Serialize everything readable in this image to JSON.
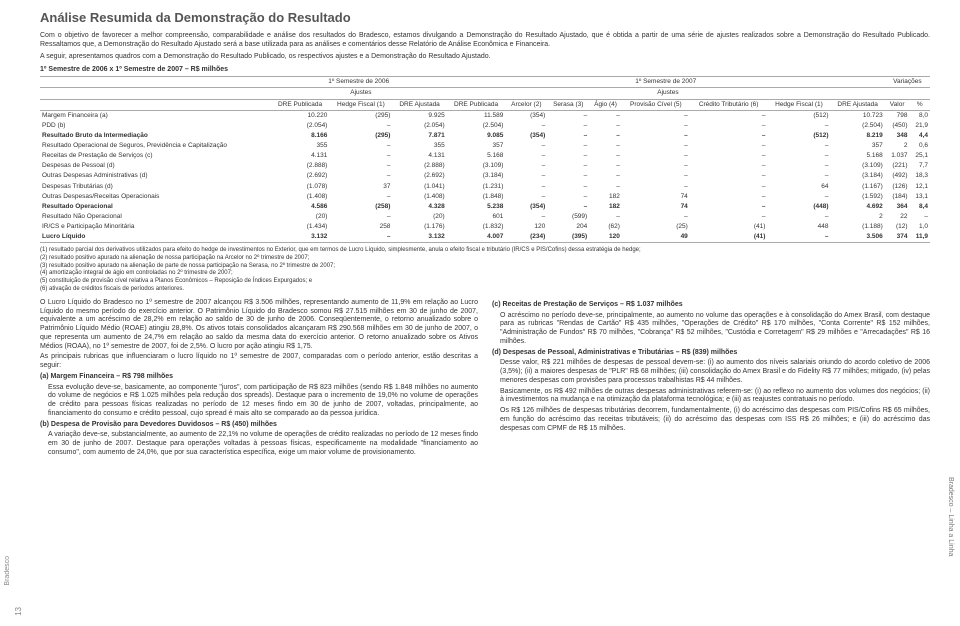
{
  "title": "Análise Resumida da Demonstração do Resultado",
  "intro": [
    "Com o objetivo de favorecer a melhor compreensão, comparabilidade e análise dos resultados do Bradesco, estamos divulgando a Demonstração do Resultado Ajustado, que é obtida a partir de uma série de ajustes realizados sobre a Demonstração do Resultado Publicado. Ressaltamos que, a Demonstração do Resultado Ajustado será a base utilizada para as análises e comentários desse Relatório de Análise Econômica e Financeira.",
    "A seguir, apresentamos quadros com a Demonstração do Resultado Publicado, os respectivos ajustes e a Demonstração do Resultado Ajustado."
  ],
  "subtitle": "1º Semestre de 2006 x 1º Semestre de 2007 – R$ milhões",
  "table": {
    "period1": "1º Semestre de 2006",
    "period2": "1º Semestre de 2007",
    "var": "Variações",
    "adjustLabel": "Ajustes",
    "cols": [
      "DRE Publicada",
      "Hedge Fiscal (1)",
      "DRE Ajustada",
      "DRE Publicada",
      "Arcelor (2)",
      "Serasa (3)",
      "Ágio (4)",
      "Provisão Cível (5)",
      "Crédito Tributário (6)",
      "Hedge Fiscal (1)",
      "DRE Ajustada",
      "Valor",
      "%"
    ],
    "rows": [
      {
        "label": "Margem Financeira (a)",
        "v": [
          "10.220",
          "(295)",
          "9.925",
          "11.589",
          "(354)",
          "–",
          "–",
          "–",
          "–",
          "(512)",
          "10.723",
          "798",
          "8,0"
        ],
        "bold": false
      },
      {
        "label": "PDD (b)",
        "v": [
          "(2.054)",
          "–",
          "(2.054)",
          "(2.504)",
          "–",
          "–",
          "–",
          "–",
          "–",
          "–",
          "(2.504)",
          "(450)",
          "21,9"
        ],
        "bold": false
      },
      {
        "label": "Resultado Bruto da Intermediação",
        "v": [
          "8.166",
          "(295)",
          "7.871",
          "9.085",
          "(354)",
          "–",
          "–",
          "–",
          "–",
          "(512)",
          "8.219",
          "348",
          "4,4"
        ],
        "bold": true
      },
      {
        "label": "Resultado Operacional de Seguros, Previdência e Capitalização",
        "v": [
          "355",
          "–",
          "355",
          "357",
          "–",
          "–",
          "–",
          "–",
          "–",
          "–",
          "357",
          "2",
          "0,6"
        ],
        "bold": false
      },
      {
        "label": "Receitas de Prestação de Serviços (c)",
        "v": [
          "4.131",
          "–",
          "4.131",
          "5.168",
          "–",
          "–",
          "–",
          "–",
          "–",
          "–",
          "5.168",
          "1.037",
          "25,1"
        ],
        "bold": false
      },
      {
        "label": "Despesas de Pessoal (d)",
        "v": [
          "(2.888)",
          "–",
          "(2.888)",
          "(3.109)",
          "–",
          "–",
          "–",
          "–",
          "–",
          "–",
          "(3.109)",
          "(221)",
          "7,7"
        ],
        "bold": false
      },
      {
        "label": "Outras Despesas Administrativas (d)",
        "v": [
          "(2.692)",
          "–",
          "(2.692)",
          "(3.184)",
          "–",
          "–",
          "–",
          "–",
          "–",
          "–",
          "(3.184)",
          "(492)",
          "18,3"
        ],
        "bold": false
      },
      {
        "label": "Despesas Tributárias (d)",
        "v": [
          "(1.078)",
          "37",
          "(1.041)",
          "(1.231)",
          "–",
          "–",
          "–",
          "–",
          "–",
          "64",
          "(1.167)",
          "(126)",
          "12,1"
        ],
        "bold": false
      },
      {
        "label": "Outras Despesas/Receitas Operacionais",
        "v": [
          "(1.408)",
          "–",
          "(1.408)",
          "(1.848)",
          "–",
          "–",
          "182",
          "74",
          "–",
          "–",
          "(1.592)",
          "(184)",
          "13,1"
        ],
        "bold": false
      },
      {
        "label": "Resultado Operacional",
        "v": [
          "4.586",
          "(258)",
          "4.328",
          "5.238",
          "(354)",
          "–",
          "182",
          "74",
          "–",
          "(448)",
          "4.692",
          "364",
          "8,4"
        ],
        "bold": true
      },
      {
        "label": "Resultado Não Operacional",
        "v": [
          "(20)",
          "–",
          "(20)",
          "601",
          "–",
          "(599)",
          "–",
          "–",
          "–",
          "–",
          "2",
          "22",
          "–"
        ],
        "bold": false
      },
      {
        "label": "IR/CS e Participação Minoritária",
        "v": [
          "(1.434)",
          "258",
          "(1.176)",
          "(1.832)",
          "120",
          "204",
          "(62)",
          "(25)",
          "(41)",
          "448",
          "(1.188)",
          "(12)",
          "1,0"
        ],
        "bold": false
      },
      {
        "label": "Lucro Líquido",
        "v": [
          "3.132",
          "–",
          "3.132",
          "4.007",
          "(234)",
          "(395)",
          "120",
          "49",
          "(41)",
          "–",
          "3.506",
          "374",
          "11,9"
        ],
        "bold": true
      }
    ]
  },
  "notes": [
    "(1) resultado parcial dos derivativos utilizados para efeito do hedge de investimentos no Exterior, que em termos de Lucro Líquido, simplesmente, anula o efeito fiscal e tributário (IR/CS e PIS/Cofins) dessa estratégia de hedge;",
    "(2) resultado positivo apurado na alienação de nossa participação na Arcelor no 2º trimestre de 2007;",
    "(3) resultado positivo apurado na alienação de parte de nossa participação na Serasa, no 2º trimestre de 2007;",
    "(4) amortização integral de ágio em controladas no 2º trimestre de 2007;",
    "(5) constituição de provisão cível relativa a Planos Econômicos – Reposição de Índices Expurgados; e",
    "(6) ativação de créditos fiscais de períodos anteriores."
  ],
  "left": [
    {
      "t": "p",
      "c": "O Lucro Líquido do Bradesco no 1º semestre de 2007 alcançou R$ 3.506 milhões, representando aumento de 11,9% em relação ao Lucro Líquido do mesmo período do exercício anterior. O Patrimônio Líquido do Bradesco somou R$ 27.515 milhões em 30 de junho de 2007, equivalente a um acréscimo de 28,2% em relação ao saldo de 30 de junho de 2006. Conseqüentemente, o retorno anualizado sobre o Patrimônio Líquido Médio (ROAE) atingiu 28,8%. Os ativos totais consolidados alcançaram R$ 290.568 milhões em 30 de junho de 2007, o que representa um aumento de 24,7% em relação ao saldo da mesma data do exercício anterior. O retorno anualizado sobre os Ativos Médios (ROAA), no 1º semestre de 2007, foi de 2,5%. O lucro por ação atingiu R$ 1,75."
    },
    {
      "t": "p",
      "c": "As principais rubricas que influenciaram o lucro líquido no 1º semestre de 2007, comparadas com o período anterior, estão descritas a seguir:"
    },
    {
      "t": "h",
      "c": "(a) Margem Financeira – R$ 798 milhões"
    },
    {
      "t": "pi",
      "c": "Essa evolução deve-se, basicamente, ao componente \"juros\", com participação de R$ 823 milhões (sendo R$ 1.848 milhões no aumento do volume de negócios e R$ 1.025 milhões pela redução dos spreads). Destaque para o incremento de 19,0% no volume de operações de crédito para pessoas físicas realizadas no período de 12 meses findo em 30 de junho de 2007, voltadas, principalmente, ao financiamento do consumo e crédito pessoal, cujo spread é mais alto se comparado ao da pessoa jurídica."
    },
    {
      "t": "h",
      "c": "(b) Despesa de Provisão para Devedores Duvidosos – R$ (450) milhões"
    },
    {
      "t": "pi",
      "c": "A variação deve-se, substancialmente, ao aumento de 22,1% no volume de operações de crédito realizadas no período de 12 meses findo em 30 de junho de 2007. Destaque para operações voltadas à pessoas físicas, especificamente na modalidade \"financiamento ao consumo\", com aumento de 24,0%, que por sua característica específica, exige um maior volume de provisionamento."
    }
  ],
  "right": [
    {
      "t": "h",
      "c": "(c) Receitas de Prestação de Serviços – R$ 1.037 milhões"
    },
    {
      "t": "pi",
      "c": "O acréscimo no período deve-se, principalmente, ao aumento no volume das operações e à consolidação do Amex Brasil, com destaque para as rubricas \"Rendas de Cartão\" R$ 435 milhões, \"Operações de Crédito\" R$ 170 milhões, \"Conta Corrente\" R$ 152 milhões, \"Administração de Fundos\" R$ 70 milhões, \"Cobrança\" R$ 52 milhões, \"Custódia e Corretagem\" R$ 29 milhões e \"Arrecadações\" R$ 16 milhões."
    },
    {
      "t": "h",
      "c": "(d) Despesas de Pessoal, Administrativas e Tributárias – R$ (839) milhões"
    },
    {
      "t": "pi",
      "c": "Desse valor, R$ 221 milhões de despesas de pessoal devem-se: (i) ao aumento dos níveis salariais oriundo do acordo coletivo de 2006 (3,5%); (ii) a maiores despesas de \"PLR\" R$ 68 milhões; (iii) consolidação do Amex Brasil e do Fidelity R$ 77 milhões; mitigado, (iv) pelas menores despesas com provisões para processos trabalhistas R$ 44 milhões."
    },
    {
      "t": "pi",
      "c": "Basicamente, os R$ 492 milhões de outras despesas administrativas referem-se: (i) ao reflexo no aumento dos volumes dos negócios; (ii) à investimentos na mudança e na otimização da plataforma tecnológica; e (iii) as reajustes contratuais no período."
    },
    {
      "t": "pi",
      "c": "Os R$ 126 milhões de despesas tributárias decorrem, fundamentalmente, (i) do acréscimo das despesas com PIS/Cofins R$ 65 milhões, em função do acréscimo das receitas tributáveis; (ii) do acréscimo das despesas com ISS R$ 26 milhões; e (iii) do acréscimo das despesas com CPMF de R$ 15 milhões."
    }
  ],
  "sideLabel": "Bradesco – Linha a Linha",
  "pageNum": "13",
  "brand": "Bradesco"
}
